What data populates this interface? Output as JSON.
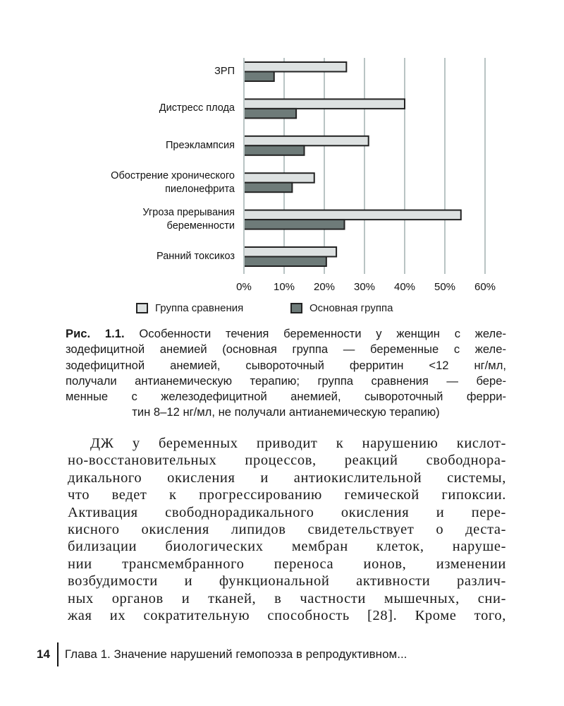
{
  "chart_data": {
    "type": "bar",
    "orientation": "horizontal",
    "categories": [
      "ЗРП",
      "Дистресс плода",
      "Преэклампсия",
      "Обострение хронического пиелонефрита",
      "Угроза прерывания беременности",
      "Ранний токсикоз"
    ],
    "category_lines": [
      [
        "ЗРП"
      ],
      [
        "Дистресс плода"
      ],
      [
        "Преэклампсия"
      ],
      [
        "Обострение хронического",
        "пиелонефрита"
      ],
      [
        "Угроза прерывания",
        "беременности"
      ],
      [
        "Ранний токсикоз"
      ]
    ],
    "series": [
      {
        "name": "Группа сравнения",
        "color": "#dde1e1",
        "values": [
          25.5,
          40,
          31,
          17.5,
          54,
          23
        ]
      },
      {
        "name": "Основная группа",
        "color": "#6e7b79",
        "values": [
          7.5,
          13,
          15,
          12,
          25,
          20.5
        ]
      }
    ],
    "xlim": [
      0,
      60
    ],
    "xticks": [
      "0%",
      "10%",
      "20%",
      "30%",
      "40%",
      "50%",
      "60%"
    ],
    "grid": true,
    "legend_position": "bottom",
    "xlabel": "",
    "ylabel": ""
  },
  "caption": {
    "label": "Рис. 1.1.",
    "lines": [
      "Особенности течения беременности у женщин с желе-",
      "зодефицитной анемией (основная группа — беременные с желе-",
      "зодефицитной анемией, сывороточный ферритин <12 нг/мл,",
      "получали антианемическую терапию; группа сравнения — бере-",
      "менные с железодефицитной анемией, сывороточный ферри-",
      "тин 8–12 нг/мл, не получали антианемическую терапию)"
    ]
  },
  "body_lines": [
    "ДЖ у беременных приводит к нарушению кислот-",
    "но-восстановительных процессов, реакций свободнора-",
    "дикального окисления и антиокислительной системы,",
    "что ведет к прогрессированию гемической гипоксии.",
    "Активация свободнорадикального окисления и пере-",
    "кисного окисления липидов свидетельствует о деста-",
    "билизации биологических мембран клеток, наруше-",
    "нии трансмембранного переноса ионов, изменении",
    "возбудимости и функциональной активности различ-",
    "ных органов и тканей, в частности мышечных, сни-",
    "жая их сократительную способность [28]. Кроме того,"
  ],
  "footer": {
    "page_number": "14",
    "running_title": "Глава 1. Значение нарушений гемопоэза в репродуктивном..."
  }
}
